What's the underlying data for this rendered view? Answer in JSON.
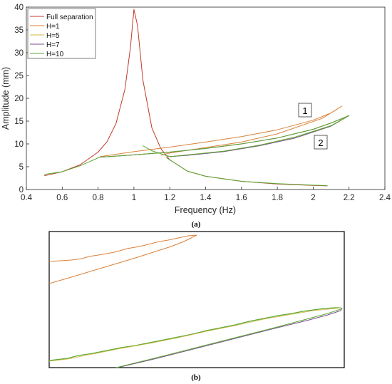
{
  "chart_data": [
    {
      "type": "line",
      "panel_label": "(a)",
      "xlabel": "Frequency (Hz)",
      "ylabel": "Amplitude (mm)",
      "xlim": [
        0.4,
        2.4
      ],
      "ylim": [
        0,
        40
      ],
      "xticks": [
        "0.4",
        "0.6",
        "0.8",
        "1",
        "1.2",
        "1.4",
        "1.6",
        "1.8",
        "2",
        "2.2",
        "2.4"
      ],
      "yticks": [
        "0",
        "5",
        "10",
        "15",
        "20",
        "25",
        "30",
        "35",
        "40"
      ],
      "grid": false,
      "legend_position": "top-left",
      "annotations": [
        "1",
        "2"
      ],
      "colors": {
        "Full separation": "#c0392b",
        "H=1": "#d9813a",
        "H=5": "#d4b43a",
        "H=7": "#7a4f8a",
        "H=10": "#5aa832"
      },
      "series": [
        {
          "name": "Full separation",
          "points": [
            [
              0.5,
              3.0
            ],
            [
              0.6,
              3.9
            ],
            [
              0.7,
              5.4
            ],
            [
              0.8,
              8.2
            ],
            [
              0.85,
              10.5
            ],
            [
              0.9,
              14.5
            ],
            [
              0.95,
              22.0
            ],
            [
              0.98,
              31.0
            ],
            [
              1.0,
              39.5
            ],
            [
              1.02,
              36.0
            ],
            [
              1.05,
              24.0
            ],
            [
              1.1,
              13.5
            ],
            [
              1.15,
              9.0
            ],
            [
              1.2,
              6.5
            ],
            [
              1.3,
              4.0
            ],
            [
              1.4,
              2.9
            ],
            [
              1.6,
              1.8
            ],
            [
              1.8,
              1.2
            ],
            [
              2.0,
              0.9
            ],
            [
              2.08,
              0.8
            ]
          ]
        },
        {
          "name": "H=1",
          "points": [
            [
              0.81,
              7.2
            ],
            [
              1.0,
              8.3
            ],
            [
              1.2,
              9.3
            ],
            [
              1.4,
              10.4
            ],
            [
              1.6,
              11.6
            ],
            [
              1.8,
              13.1
            ],
            [
              2.0,
              15.2
            ],
            [
              2.1,
              16.8
            ],
            [
              2.16,
              18.3
            ],
            [
              2.05,
              15.6
            ],
            [
              1.8,
              12.2
            ],
            [
              1.6,
              10.4
            ],
            [
              1.4,
              9.2
            ],
            [
              1.2,
              8.0
            ],
            [
              1.15,
              7.5
            ]
          ]
        },
        {
          "name": "H=5",
          "points": [
            [
              0.81,
              7.1
            ],
            [
              1.0,
              7.6
            ],
            [
              1.2,
              8.2
            ],
            [
              1.4,
              9.0
            ],
            [
              1.6,
              10.0
            ],
            [
              1.8,
              11.3
            ],
            [
              2.0,
              13.2
            ],
            [
              2.1,
              14.6
            ],
            [
              2.2,
              16.2
            ],
            [
              2.1,
              14.0
            ],
            [
              1.9,
              11.5
            ],
            [
              1.7,
              9.7
            ],
            [
              1.5,
              8.4
            ],
            [
              1.3,
              7.6
            ],
            [
              1.2,
              7.2
            ]
          ]
        },
        {
          "name": "H=7",
          "points": [
            [
              0.81,
              7.1
            ],
            [
              1.0,
              7.6
            ],
            [
              1.2,
              8.2
            ],
            [
              1.4,
              9.0
            ],
            [
              1.6,
              10.0
            ],
            [
              1.8,
              11.3
            ],
            [
              2.0,
              13.2
            ],
            [
              2.1,
              14.6
            ],
            [
              2.2,
              16.2
            ],
            [
              2.1,
              13.9
            ],
            [
              1.9,
              11.3
            ],
            [
              1.7,
              9.6
            ],
            [
              1.5,
              8.3
            ],
            [
              1.3,
              7.5
            ],
            [
              1.2,
              7.2
            ]
          ]
        },
        {
          "name": "H=10",
          "points": [
            [
              0.5,
              3.3
            ],
            [
              0.6,
              3.9
            ],
            [
              0.7,
              5.2
            ],
            [
              0.81,
              7.1
            ],
            [
              1.0,
              7.6
            ],
            [
              1.2,
              8.2
            ],
            [
              1.4,
              9.0
            ],
            [
              1.6,
              10.0
            ],
            [
              1.8,
              11.3
            ],
            [
              2.0,
              13.2
            ],
            [
              2.1,
              14.6
            ],
            [
              2.2,
              16.2
            ],
            [
              2.1,
              14.0
            ],
            [
              1.9,
              11.5
            ],
            [
              1.7,
              9.7
            ],
            [
              1.5,
              8.4
            ],
            [
              1.3,
              7.6
            ],
            [
              1.2,
              7.2
            ],
            [
              1.1,
              8.5
            ],
            [
              1.05,
              9.6
            ]
          ]
        },
        {
          "name": "H=10",
          "points": [
            [
              1.18,
              7.0
            ],
            [
              1.3,
              4.0
            ],
            [
              1.4,
              2.9
            ],
            [
              1.6,
              1.8
            ],
            [
              1.8,
              1.3
            ],
            [
              2.0,
              0.95
            ],
            [
              2.08,
              0.85
            ]
          ]
        }
      ]
    },
    {
      "type": "line",
      "panel_label": "(b)"
    }
  ]
}
